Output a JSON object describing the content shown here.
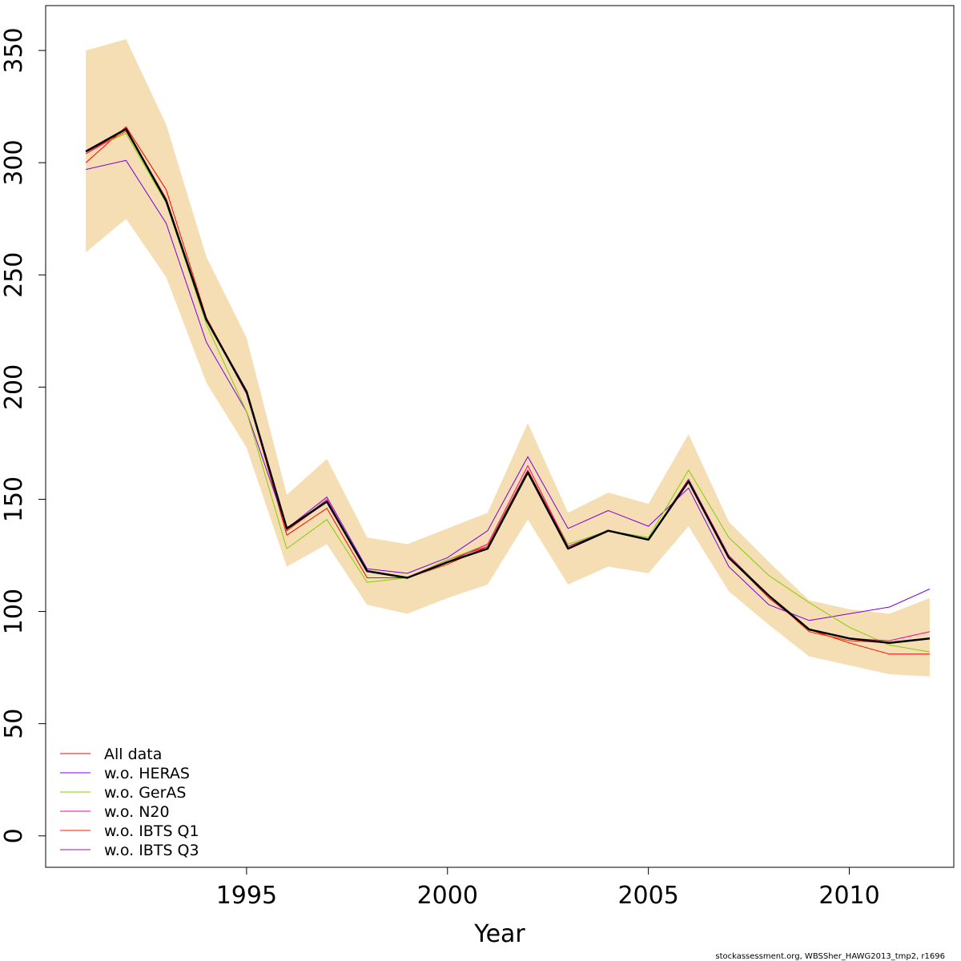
{
  "chart_data": {
    "type": "line",
    "title": "",
    "xlabel": "Year",
    "ylabel": "",
    "xlim": [
      1990.0,
      2012.6
    ],
    "ylim": [
      -14,
      370
    ],
    "x_ticks": [
      1995,
      2000,
      2005,
      2010
    ],
    "y_ticks": [
      0,
      50,
      100,
      150,
      200,
      250,
      300,
      350
    ],
    "grid": false,
    "legend_position": "bottom-left",
    "x": [
      1991,
      1992,
      1993,
      1994,
      1995,
      1996,
      1997,
      1998,
      1999,
      2000,
      2001,
      2002,
      2003,
      2004,
      2005,
      2006,
      2007,
      2008,
      2009,
      2010,
      2011,
      2012
    ],
    "confidence_band": {
      "color": "#F5DEB3",
      "lower": [
        260,
        275,
        249,
        202,
        173,
        120,
        130,
        103,
        99,
        106,
        112,
        141,
        112,
        120,
        117,
        138,
        109,
        94,
        80,
        76,
        72,
        71
      ],
      "upper": [
        350,
        355,
        317,
        258,
        222,
        152,
        168,
        133,
        130,
        137,
        144,
        184,
        144,
        153,
        148,
        179,
        140,
        122,
        105,
        101,
        99,
        106
      ]
    },
    "series": [
      {
        "name": "All data",
        "color": "#FF0000",
        "width": 1,
        "values": [
          300,
          316,
          288,
          231,
          198,
          134,
          146,
          115,
          115,
          123,
          129,
          162,
          129,
          136,
          132,
          158,
          124,
          106,
          92,
          86,
          81,
          81
        ]
      },
      {
        "name": "w.o. HERAS",
        "color": "#7B00E0",
        "width": 1,
        "values": [
          297,
          301,
          273,
          220,
          189,
          137,
          151,
          119,
          117,
          124,
          136,
          169,
          137,
          145,
          138,
          155,
          120,
          103,
          96,
          99,
          102,
          110
        ]
      },
      {
        "name": "w.o. GerAS",
        "color": "#7FD000",
        "width": 1,
        "values": [
          305,
          313,
          282,
          228,
          189,
          128,
          141,
          113,
          115,
          123,
          130,
          163,
          130,
          136,
          133,
          163,
          133,
          116,
          104,
          93,
          85,
          82
        ]
      },
      {
        "name": "w.o. N20",
        "color": "#FF00A0",
        "width": 1,
        "values": [
          304,
          315,
          284,
          230,
          197,
          136,
          150,
          118,
          115,
          122,
          130,
          165,
          129,
          136,
          132,
          159,
          125,
          107,
          92,
          88,
          87,
          91
        ]
      },
      {
        "name": "w.o. IBTS Q1",
        "color": "#FF2000",
        "width": 1,
        "values": [
          304,
          314,
          284,
          230,
          197,
          136,
          149,
          118,
          115,
          121,
          129,
          163,
          129,
          136,
          132,
          158,
          124,
          107,
          91,
          87,
          86,
          88
        ]
      },
      {
        "name": "w.o. IBTS Q3",
        "color": "#A0109A",
        "width": 1,
        "values": [
          305,
          315,
          283,
          230,
          197,
          137,
          149,
          118,
          115,
          122,
          128,
          162,
          129,
          136,
          132,
          158,
          124,
          107,
          92,
          88,
          86,
          88
        ]
      },
      {
        "name": "",
        "color": "#000000",
        "width": 2.5,
        "values": [
          305,
          315,
          283,
          230,
          198,
          137,
          149,
          118,
          115,
          122,
          128,
          162,
          128,
          136,
          132,
          158,
          124,
          107,
          92,
          88,
          86,
          88
        ]
      }
    ]
  },
  "footer": "stockassessment.org, WBSSher_HAWG2013_tmp2, r1696"
}
